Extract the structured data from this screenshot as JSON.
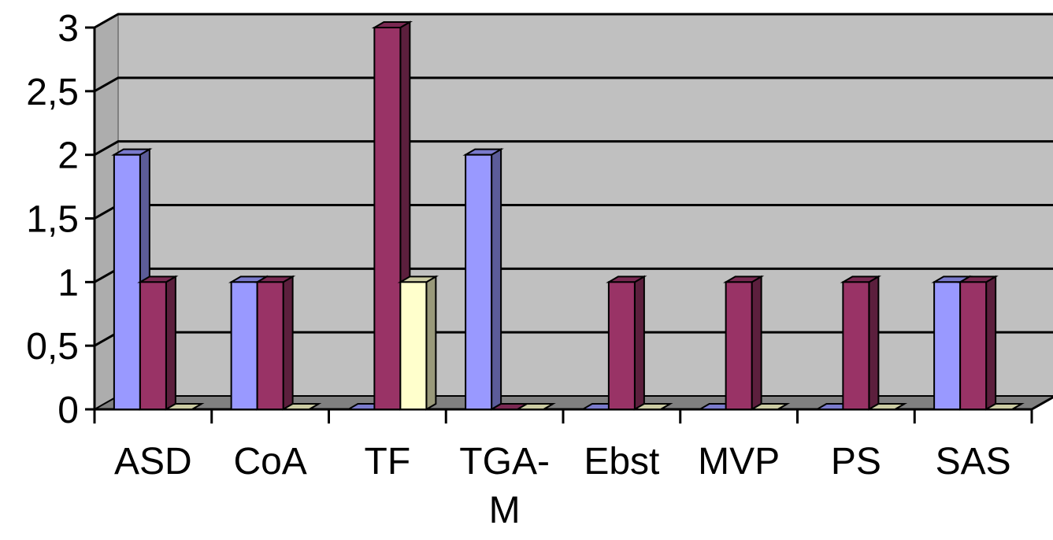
{
  "chart_data": {
    "type": "bar",
    "title": "",
    "xlabel": "",
    "ylabel": "",
    "categories": [
      "ASD",
      "CoA",
      "TF",
      "TGA-M",
      "Ebst",
      "MVP",
      "PS",
      "SAS"
    ],
    "category_lines": [
      [
        "ASD"
      ],
      [
        "CoA"
      ],
      [
        "TF"
      ],
      [
        "TGA-",
        "M"
      ],
      [
        "Ebst"
      ],
      [
        "MVP"
      ],
      [
        "PS"
      ],
      [
        "SAS"
      ]
    ],
    "series": [
      {
        "values": [
          2,
          1,
          0,
          2,
          0,
          0,
          0,
          1
        ],
        "color": "#9999ff"
      },
      {
        "values": [
          1,
          1,
          3,
          0,
          1,
          1,
          1,
          1
        ],
        "color": "#993366"
      },
      {
        "values": [
          0,
          0,
          1,
          0,
          0,
          0,
          0,
          0
        ],
        "color": "#ffffcc"
      }
    ],
    "ylim": [
      0,
      3
    ],
    "yticks": [
      0,
      0.5,
      1,
      1.5,
      2,
      2.5,
      3
    ],
    "ytick_labels": [
      "0",
      "0,5",
      "1",
      "1,5",
      "2",
      "2,5",
      "3"
    ],
    "grid": true,
    "legend": "none",
    "style": "3d",
    "colors": {
      "wall": "#c0c0c0",
      "floor": "#808080",
      "grid": "#000000"
    }
  }
}
